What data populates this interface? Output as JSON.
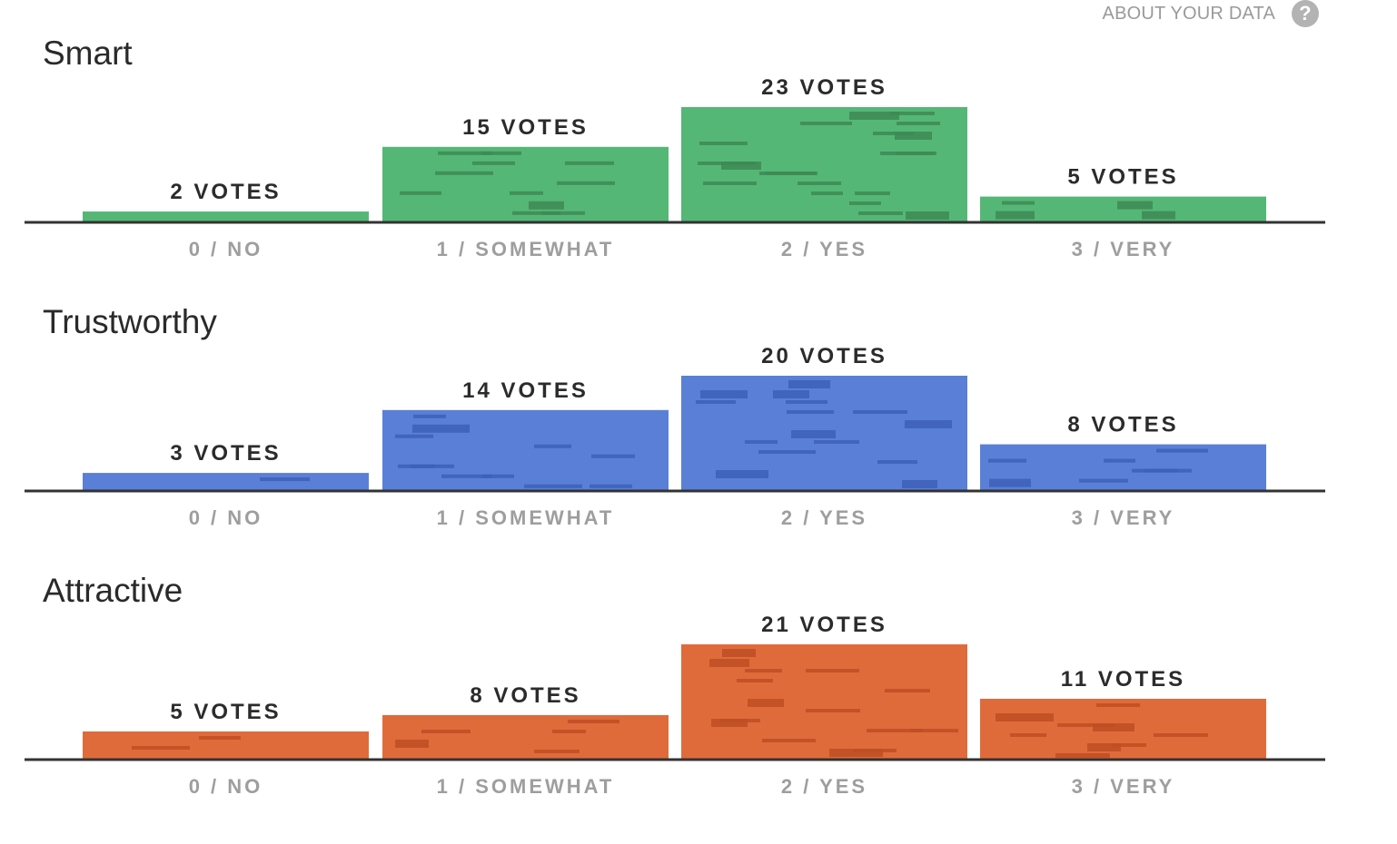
{
  "header": {
    "about_label": "ABOUT YOUR DATA",
    "help_icon": "?"
  },
  "chart_data": [
    {
      "type": "bar",
      "title": "Smart",
      "categories": [
        "0 / NO",
        "1 / SOMEWHAT",
        "2 / YES",
        "3 / VERY"
      ],
      "values": [
        2,
        15,
        23,
        5
      ],
      "value_labels": [
        "2 VOTES",
        "15 VOTES",
        "23 VOTES",
        "5 VOTES"
      ],
      "color": "#55b776",
      "dark_color": "#3e8a56",
      "ylim": [
        0,
        23
      ],
      "grid": false,
      "legend": "none"
    },
    {
      "type": "bar",
      "title": "Trustworthy",
      "categories": [
        "0 / NO",
        "1 / SOMEWHAT",
        "2 / YES",
        "3 / VERY"
      ],
      "values": [
        3,
        14,
        20,
        8
      ],
      "value_labels": [
        "3 VOTES",
        "14 VOTES",
        "20 VOTES",
        "8 VOTES"
      ],
      "color": "#5a7fd6",
      "dark_color": "#3d5fb8",
      "ylim": [
        0,
        20
      ],
      "grid": false,
      "legend": "none"
    },
    {
      "type": "bar",
      "title": "Attractive",
      "categories": [
        "0 / NO",
        "1 / SOMEWHAT",
        "2 / YES",
        "3 / VERY"
      ],
      "values": [
        5,
        8,
        21,
        11
      ],
      "value_labels": [
        "5 VOTES",
        "8 VOTES",
        "21 VOTES",
        "11 VOTES"
      ],
      "color": "#e06b3a",
      "dark_color": "#bd4d24",
      "ylim": [
        0,
        21
      ],
      "grid": false,
      "legend": "none"
    }
  ]
}
